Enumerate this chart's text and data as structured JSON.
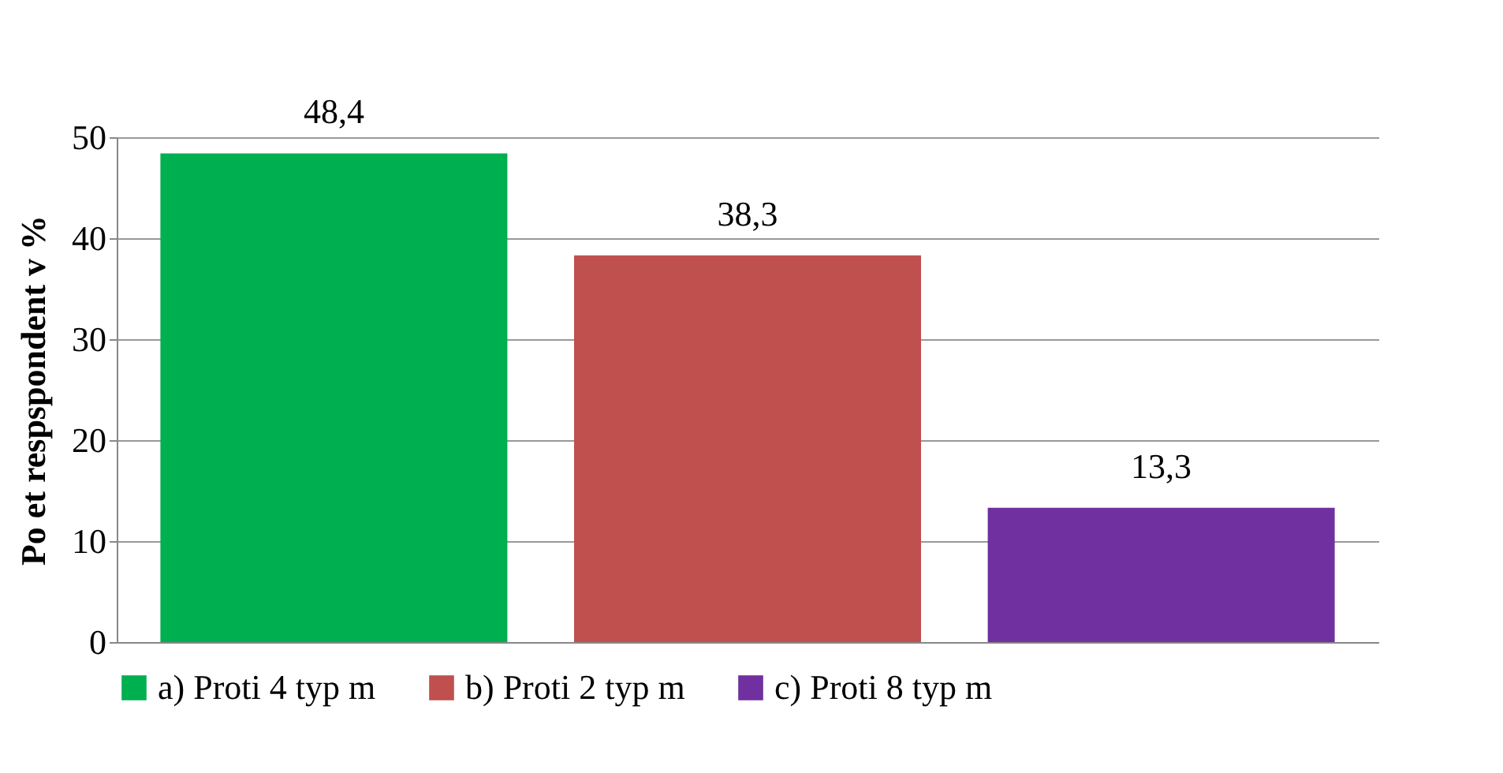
{
  "chart_data": {
    "type": "bar",
    "ylabel": "Po et respspondent   v %",
    "categories": [
      null,
      null,
      null
    ],
    "series": [
      {
        "name": "a) Proti 4 typ  m",
        "color": "#00b050",
        "values": [
          48.4,
          null,
          null
        ],
        "value_labels": [
          "48,4",
          null,
          null
        ]
      },
      {
        "name": "b) Proti 2 typ  m",
        "color": "#c0504d",
        "values": [
          null,
          38.3,
          null
        ],
        "value_labels": [
          null,
          "38,3",
          null
        ]
      },
      {
        "name": "c) Proti 8 typ  m",
        "color": "#7030a0",
        "values": [
          null,
          null,
          13.3
        ],
        "value_labels": [
          null,
          null,
          "13,3"
        ]
      }
    ],
    "ylim": [
      0,
      50
    ],
    "yticks": [
      0,
      10,
      20,
      30,
      40,
      50
    ],
    "grid": "y",
    "legend": "bottom",
    "tick_labels": "y"
  }
}
